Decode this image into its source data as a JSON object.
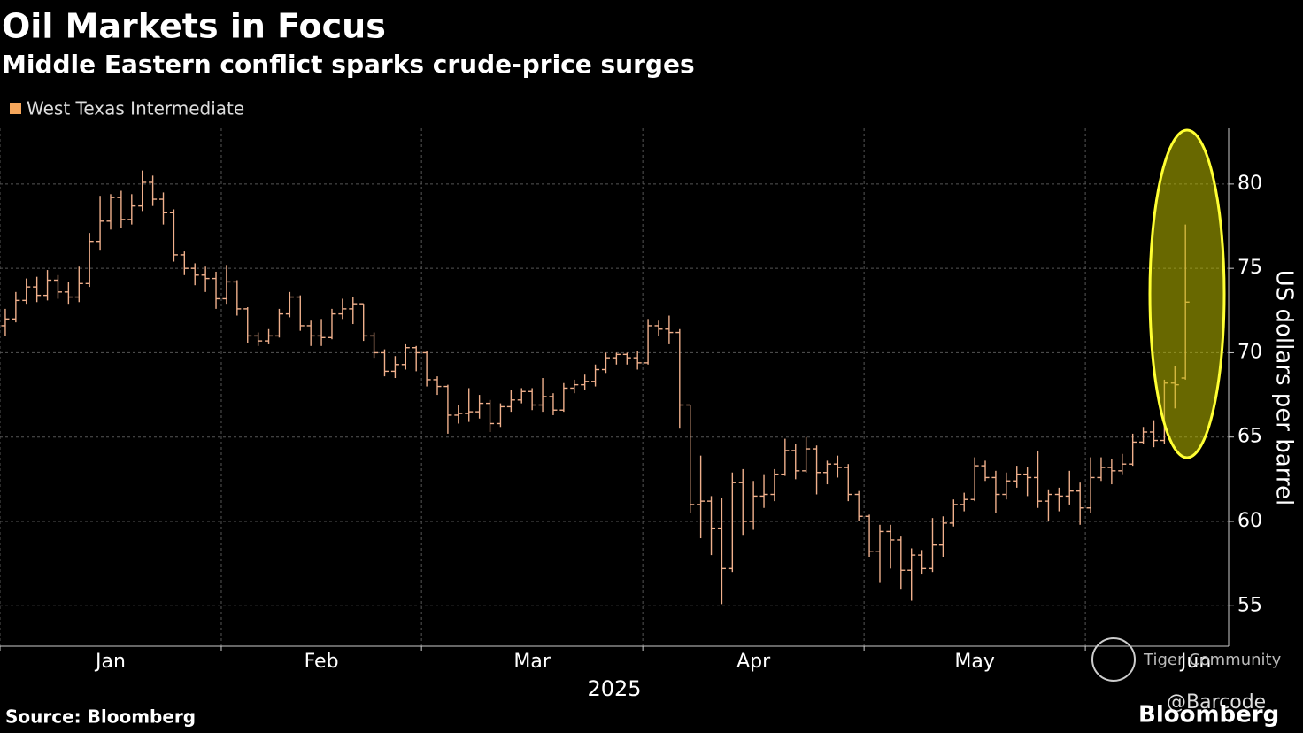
{
  "chart_data": {
    "type": "ohlc",
    "title": "Oil Markets in Focus",
    "subtitle": "Middle Eastern conflict sparks crude-price surges",
    "series": [
      {
        "name": "West Texas Intermediate",
        "color": "#f0b08c",
        "legend_color": "#f5a65b",
        "open": [
          71.6,
          72.0,
          73.1,
          73.9,
          73.4,
          74.3,
          73.6,
          73.3,
          74.1,
          76.6,
          77.8,
          79.2,
          77.9,
          78.7,
          80.1,
          79.1,
          78.3,
          75.8,
          75.0,
          74.6,
          74.4,
          73.2,
          74.2,
          72.6,
          71.0,
          70.7,
          71.0,
          72.3,
          73.3,
          71.6,
          71.0,
          70.9,
          72.3,
          72.6,
          72.9,
          71.0,
          70.0,
          68.9,
          69.3,
          70.3,
          70.0,
          68.4,
          68.0,
          66.3,
          66.4,
          66.5,
          67.0,
          65.8,
          66.8,
          67.2,
          67.7,
          66.9,
          67.4,
          66.6,
          67.9,
          68.1,
          68.3,
          69.0,
          69.7,
          69.9,
          69.7,
          69.4,
          71.6,
          71.4,
          71.2,
          66.9,
          61.0,
          61.2,
          59.6,
          57.2,
          62.3,
          60.0,
          61.5,
          61.6,
          62.8,
          64.2,
          63.0,
          64.3,
          62.9,
          63.4,
          63.2,
          61.6,
          60.3,
          58.2,
          59.4,
          58.9,
          57.1,
          58.0,
          57.2,
          58.6,
          59.9,
          61.0,
          61.3,
          63.3,
          62.6,
          61.6,
          62.4,
          62.8,
          62.6,
          61.2,
          61.6,
          61.5,
          61.8,
          60.8,
          62.6,
          63.2,
          63.0,
          63.4,
          64.7,
          65.3,
          64.8,
          68.2,
          68.5
        ],
        "high": [
          72.6,
          73.6,
          74.4,
          74.5,
          74.9,
          74.6,
          74.2,
          75.1,
          77.1,
          79.3,
          79.4,
          79.6,
          79.4,
          80.8,
          80.5,
          79.5,
          78.5,
          76.0,
          75.3,
          75.1,
          74.8,
          75.2,
          74.3,
          72.7,
          71.2,
          71.4,
          72.6,
          73.6,
          73.4,
          71.9,
          72.0,
          72.6,
          73.2,
          73.3,
          72.9,
          71.2,
          70.2,
          69.8,
          70.5,
          70.4,
          70.1,
          68.6,
          68.1,
          66.9,
          67.9,
          67.5,
          67.2,
          67.0,
          67.8,
          67.9,
          67.9,
          68.5,
          67.6,
          68.2,
          68.4,
          68.7,
          69.3,
          70.0,
          70.0,
          70.0,
          70.1,
          72.0,
          71.9,
          72.2,
          71.4,
          66.9,
          63.9,
          61.5,
          61.4,
          62.9,
          63.1,
          62.4,
          62.8,
          63.1,
          64.9,
          64.6,
          65.0,
          64.5,
          63.6,
          63.9,
          63.4,
          61.8,
          60.4,
          59.8,
          59.8,
          59.1,
          58.4,
          58.3,
          60.2,
          60.3,
          61.3,
          61.7,
          63.8,
          63.6,
          63.0,
          62.9,
          63.3,
          63.2,
          64.2,
          61.9,
          62.0,
          63.0,
          62.3,
          63.8,
          63.8,
          63.7,
          64.0,
          65.2,
          65.6,
          66.0,
          68.4,
          69.2,
          77.6
        ],
        "low": [
          71.0,
          71.8,
          72.9,
          73.0,
          73.1,
          73.2,
          72.9,
          73.0,
          73.9,
          76.1,
          77.3,
          77.4,
          77.6,
          78.4,
          78.7,
          77.6,
          75.4,
          74.6,
          74.0,
          73.6,
          72.6,
          72.9,
          72.2,
          70.6,
          70.4,
          70.5,
          70.9,
          72.1,
          71.3,
          70.4,
          70.4,
          70.8,
          72.0,
          71.7,
          70.7,
          69.7,
          68.6,
          68.5,
          69.0,
          68.9,
          68.0,
          67.5,
          65.2,
          65.8,
          65.9,
          66.1,
          65.3,
          65.6,
          66.5,
          67.0,
          66.6,
          66.5,
          66.3,
          66.5,
          67.6,
          67.8,
          68.0,
          68.8,
          69.3,
          69.3,
          69.0,
          69.3,
          71.0,
          70.5,
          65.5,
          60.5,
          59.0,
          58.0,
          55.1,
          57.0,
          59.2,
          59.5,
          60.8,
          61.2,
          62.7,
          62.5,
          62.9,
          61.6,
          62.2,
          62.6,
          61.2,
          60.0,
          57.9,
          56.4,
          57.2,
          56.0,
          55.3,
          56.9,
          57.0,
          57.9,
          59.7,
          60.6,
          61.2,
          62.4,
          60.5,
          61.3,
          62.0,
          61.5,
          60.8,
          60.0,
          60.6,
          61.0,
          59.8,
          60.5,
          62.4,
          62.2,
          62.8,
          63.3,
          64.6,
          64.4,
          64.6,
          66.7,
          68.4
        ],
        "close": [
          72.0,
          73.1,
          73.9,
          73.4,
          74.3,
          73.6,
          73.3,
          74.1,
          76.6,
          77.8,
          79.2,
          77.9,
          78.7,
          80.1,
          79.1,
          78.3,
          75.8,
          75.0,
          74.6,
          74.4,
          73.2,
          74.2,
          72.6,
          71.0,
          70.7,
          71.0,
          72.3,
          73.3,
          71.6,
          71.0,
          70.9,
          72.3,
          72.6,
          72.9,
          71.0,
          70.0,
          68.9,
          69.3,
          70.3,
          70.0,
          68.4,
          68.0,
          66.3,
          66.4,
          66.5,
          67.0,
          65.8,
          66.8,
          67.2,
          67.7,
          66.9,
          67.4,
          66.6,
          67.9,
          68.1,
          68.3,
          69.0,
          69.7,
          69.9,
          69.7,
          69.4,
          71.6,
          71.4,
          71.2,
          66.9,
          61.0,
          61.2,
          59.6,
          57.2,
          62.3,
          60.0,
          61.5,
          61.6,
          62.8,
          64.2,
          63.0,
          64.3,
          62.9,
          63.4,
          63.2,
          61.6,
          60.3,
          58.2,
          59.4,
          58.9,
          57.1,
          58.0,
          57.2,
          58.6,
          59.9,
          61.0,
          61.3,
          63.3,
          62.6,
          61.6,
          62.4,
          62.8,
          62.6,
          61.2,
          61.6,
          61.5,
          61.8,
          60.8,
          62.6,
          63.2,
          63.0,
          63.4,
          64.7,
          65.3,
          64.8,
          68.2,
          68.1,
          73.0
        ]
      }
    ],
    "categories": [
      null,
      null,
      null,
      null,
      null,
      null,
      null,
      null,
      null,
      null,
      null,
      null,
      null,
      null,
      null,
      null,
      null,
      null,
      null,
      null,
      null,
      null,
      null,
      null,
      null,
      null,
      null,
      null,
      null,
      null,
      null,
      null,
      null,
      null,
      null,
      null,
      null,
      null,
      null,
      null,
      null,
      null,
      null,
      null,
      null,
      null,
      null,
      null,
      null,
      null,
      null,
      null,
      null,
      null,
      null,
      null,
      null,
      null,
      null,
      null,
      null,
      null,
      null,
      null,
      null,
      null,
      null,
      null,
      null,
      null,
      null,
      null,
      null,
      null,
      null,
      null,
      null,
      null,
      null,
      null,
      null,
      null,
      null,
      null,
      null,
      null,
      null,
      null,
      null,
      null,
      null,
      null,
      null,
      null,
      null,
      null,
      null,
      null,
      null,
      null,
      null,
      null,
      null,
      null,
      null,
      null,
      null,
      null,
      null,
      null,
      null,
      null,
      null
    ],
    "xlim": [
      -0.5,
      116.1
    ],
    "xticks": [
      {
        "value": 10,
        "label": "Jan"
      },
      {
        "value": 30,
        "label": "Feb"
      },
      {
        "value": 50,
        "label": "Mar"
      },
      {
        "value": 71,
        "label": "Apr"
      },
      {
        "value": 92,
        "label": "May"
      },
      {
        "value": 113,
        "label": "Jun"
      }
    ],
    "xgrid": [
      -0.5,
      20.5,
      39.5,
      60.5,
      81.5,
      102.5
    ],
    "xlabel": "2025",
    "ylim": [
      52.6,
      83.3
    ],
    "yticks": [
      55,
      60,
      65,
      70,
      75,
      80
    ],
    "ylabel": "US dollars per barrel",
    "grid": true,
    "source": "Source: Bloomberg"
  },
  "watermarks": [
    "Tiger Community",
    "@Barcode"
  ],
  "brand": "Bloomberg"
}
